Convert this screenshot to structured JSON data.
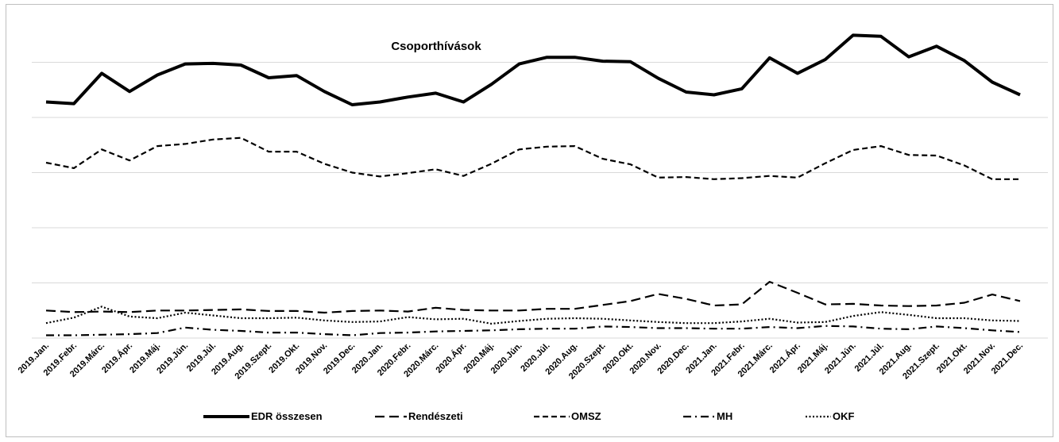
{
  "chart_data": {
    "type": "line",
    "title": "Csoporthívások",
    "xlabel": "",
    "ylabel": "",
    "ylim": [
      0,
      500
    ],
    "grid": true,
    "legend_position": "bottom",
    "categories": [
      "2019.Jan.",
      "2019.Febr.",
      "2019.Márc.",
      "2019.Ápr.",
      "2019.Máj.",
      "2019.Jún.",
      "2019.Júl.",
      "2019.Aug.",
      "2019.Szept.",
      "2019.Okt.",
      "2019.Nov.",
      "2019.Dec.",
      "2020.Jan.",
      "2020.Febr.",
      "2020.Márc.",
      "2020.Ápr.",
      "2020.Máj.",
      "2020.Jún.",
      "2020.Júl.",
      "2020.Aug.",
      "2020.Szept.",
      "2020.Okt.",
      "2020.Nov.",
      "2020.Dec.",
      "2021.Jan.",
      "2021.Febr.",
      "2021.Márc.",
      "2021.Ápr.",
      "2021.Máj.",
      "2021.Jún.",
      "2021.Júl.",
      "2021.Aug.",
      "2021.Szept.",
      "2021.Okt.",
      "2021.Nov.",
      "2021.Dec."
    ],
    "series": [
      {
        "name": "EDR összesen",
        "style": "solid-thick",
        "values": [
          428,
          425,
          480,
          447,
          477,
          497,
          498,
          495,
          472,
          476,
          447,
          423,
          428,
          437,
          444,
          428,
          460,
          497,
          509,
          509,
          502,
          501,
          471,
          446,
          441,
          452,
          508,
          480,
          505,
          549,
          547,
          510,
          529,
          503,
          464,
          441
        ]
      },
      {
        "name": "Rendészeti",
        "style": "long-dash",
        "values": [
          50,
          47,
          48,
          47,
          50,
          50,
          51,
          52,
          49,
          49,
          46,
          49,
          50,
          48,
          55,
          51,
          50,
          50,
          53,
          53,
          60,
          67,
          80,
          71,
          59,
          61,
          102,
          82,
          61,
          62,
          59,
          58,
          59,
          64,
          79,
          67
        ]
      },
      {
        "name": "OMSZ",
        "style": "short-dash",
        "values": [
          318,
          308,
          342,
          322,
          348,
          352,
          360,
          363,
          338,
          338,
          316,
          300,
          293,
          299,
          306,
          294,
          316,
          342,
          347,
          348,
          325,
          315,
          291,
          292,
          288,
          290,
          294,
          291,
          317,
          341,
          348,
          332,
          331,
          313,
          288,
          288
        ]
      },
      {
        "name": "MH",
        "style": "dash-dot",
        "values": [
          5,
          5,
          6,
          7,
          9,
          19,
          15,
          13,
          10,
          10,
          7,
          5,
          9,
          10,
          12,
          13,
          14,
          16,
          17,
          17,
          21,
          20,
          18,
          18,
          17,
          17,
          20,
          18,
          22,
          21,
          17,
          16,
          21,
          18,
          14,
          11
        ]
      },
      {
        "name": "OKF",
        "style": "dotted",
        "values": [
          27,
          37,
          57,
          39,
          36,
          46,
          41,
          36,
          36,
          37,
          32,
          29,
          30,
          38,
          34,
          35,
          26,
          31,
          35,
          36,
          35,
          32,
          29,
          27,
          27,
          30,
          35,
          28,
          29,
          40,
          47,
          42,
          36,
          36,
          32,
          31
        ]
      }
    ]
  }
}
